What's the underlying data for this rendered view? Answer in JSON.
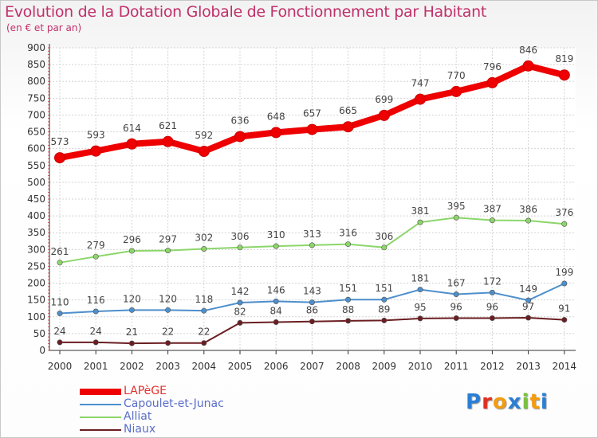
{
  "header": {
    "title": "Evolution de la Dotation Globale de Fonctionnement par Habitant",
    "subtitle": "(en € et par an)"
  },
  "chart_data": {
    "type": "line",
    "title": "Evolution de la Dotation Globale de Fonctionnement par Habitant",
    "subtitle": "(en € et par an)",
    "xlabel": "",
    "ylabel": "",
    "ylim": [
      0,
      900
    ],
    "yticks": [
      0,
      50,
      100,
      150,
      200,
      250,
      300,
      350,
      400,
      450,
      500,
      550,
      600,
      650,
      700,
      750,
      800,
      850,
      900
    ],
    "grid": true,
    "legend_position": "bottom-left",
    "x": [
      "2000",
      "2001",
      "2002",
      "2003",
      "2004",
      "2005",
      "2006",
      "2007",
      "2008",
      "2009",
      "2010",
      "2011",
      "2012",
      "2013",
      "2014"
    ],
    "series": [
      {
        "name": "LAPèGE",
        "color": "#ee0000",
        "values": [
          573,
          593,
          614,
          621,
          592,
          636,
          648,
          657,
          665,
          699,
          747,
          770,
          796,
          846,
          819
        ]
      },
      {
        "name": "Capoulet-et-Junac",
        "color": "#4d8fcc",
        "values": [
          110,
          116,
          120,
          120,
          118,
          142,
          146,
          143,
          151,
          151,
          181,
          167,
          172,
          149,
          199
        ]
      },
      {
        "name": "Alliat",
        "color": "#8cd66a",
        "values": [
          261,
          279,
          296,
          297,
          302,
          306,
          310,
          313,
          316,
          306,
          381,
          395,
          387,
          386,
          376
        ]
      },
      {
        "name": "Niaux",
        "color": "#6b1e22",
        "values": [
          24,
          24,
          21,
          22,
          22,
          82,
          84,
          86,
          88,
          89,
          95,
          96,
          96,
          97,
          91
        ]
      }
    ]
  },
  "logo": {
    "letters": [
      "P",
      "r",
      "o",
      "x",
      "i",
      "t",
      "i"
    ],
    "colors": [
      "#2a7fd4",
      "#e0301e",
      "#f39c12",
      "#2a7fd4",
      "#7ac143",
      "#f39c12",
      "#2a7fd4"
    ]
  }
}
